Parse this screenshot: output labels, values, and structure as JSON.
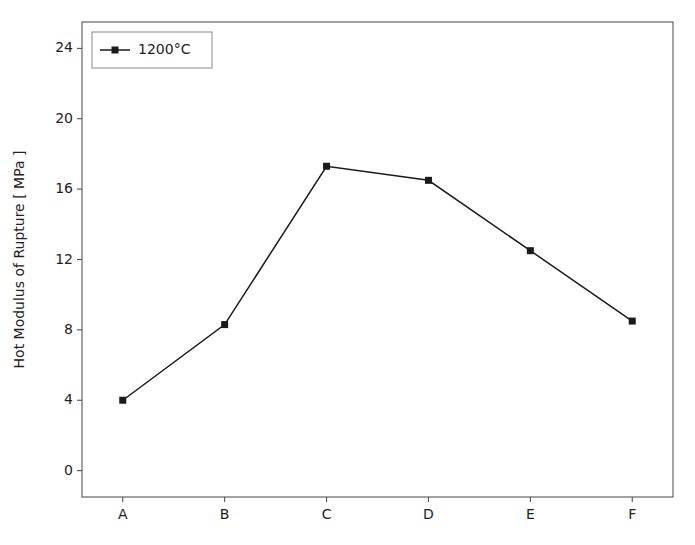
{
  "chart_data": {
    "type": "line",
    "categories": [
      "A",
      "B",
      "C",
      "D",
      "E",
      "F"
    ],
    "series": [
      {
        "name": "1200°C",
        "color": "#1a1a1a",
        "marker": "square",
        "values": [
          4.0,
          8.3,
          17.3,
          16.5,
          12.5,
          8.5
        ]
      }
    ],
    "ylabel": "Hot Modulus of Rupture [ MPa ]",
    "ylim": [
      -1.5,
      25.5
    ],
    "yticks": [
      0,
      4,
      8,
      12,
      16,
      20,
      24
    ],
    "grid": false,
    "legend": "upper left"
  }
}
